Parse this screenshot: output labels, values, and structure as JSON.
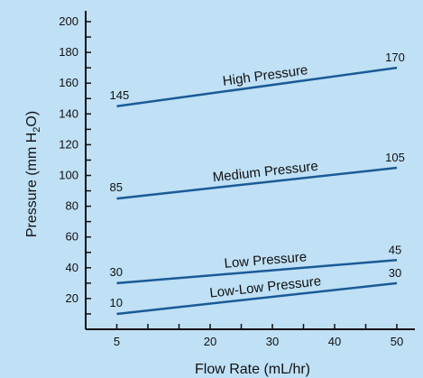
{
  "chart_data": {
    "type": "line",
    "xlabel": "Flow Rate (mL/hr)",
    "ylabel": {
      "prefix": "Pressure (mm H",
      "subscript": "2",
      "suffix": "O)"
    },
    "xlim": [
      0,
      50
    ],
    "ylim": [
      0,
      200
    ],
    "xticks_labeled": [
      "5",
      "20",
      "30",
      "40",
      "50"
    ],
    "yticks_labeled": [
      "20",
      "40",
      "60",
      "80",
      "100",
      "120",
      "140",
      "160",
      "180",
      "200"
    ],
    "grid": false,
    "series": [
      {
        "name": "High Pressure",
        "x": [
          5,
          50
        ],
        "values": [
          145,
          170
        ],
        "start_label": "145",
        "end_label": "170"
      },
      {
        "name": "Medium Pressure",
        "x": [
          5,
          50
        ],
        "values": [
          85,
          105
        ],
        "start_label": "85",
        "end_label": "105"
      },
      {
        "name": "Low Pressure",
        "x": [
          5,
          50
        ],
        "values": [
          30,
          45
        ],
        "start_label": "30",
        "end_label": "45"
      },
      {
        "name": "Low-Low Pressure",
        "x": [
          5,
          50
        ],
        "values": [
          10,
          30
        ],
        "start_label": "10",
        "end_label": "30"
      }
    ],
    "line_color": "#1a5a96",
    "background": "#bfe0f5"
  }
}
